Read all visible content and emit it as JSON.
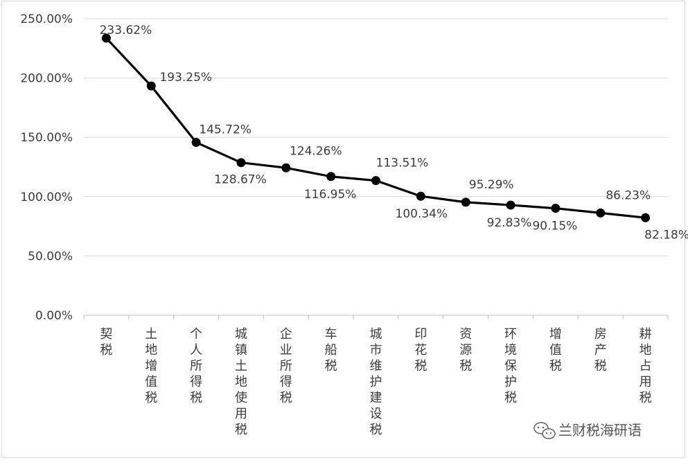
{
  "chart_data": {
    "type": "line",
    "title": "",
    "xlabel": "",
    "ylabel": "",
    "categories": [
      "契税",
      "土地增值税",
      "个人所得税",
      "城镇土地使用税",
      "企业所得税",
      "车船税",
      "城市维护建设税",
      "印花税",
      "资源税",
      "环境保护税",
      "增值税",
      "房产税",
      "耕地占用税"
    ],
    "values": [
      233.62,
      193.25,
      145.72,
      128.67,
      124.26,
      116.95,
      113.51,
      100.34,
      95.29,
      92.83,
      90.15,
      86.23,
      82.18
    ],
    "data_labels": [
      "233.62%",
      "193.25%",
      "145.72%",
      "128.67%",
      "124.26%",
      "116.95%",
      "113.51%",
      "100.34%",
      "95.29%",
      "92.83%",
      "90.15%",
      "86.23%",
      "82.18%"
    ],
    "ylim": [
      0,
      250
    ],
    "yticks": [
      0,
      50,
      100,
      150,
      200,
      250
    ],
    "ytick_labels": [
      "0.00%",
      "50.00%",
      "100.00%",
      "150.00%",
      "200.00%",
      "250.00%"
    ],
    "grid": true,
    "line_color": "#000000",
    "marker": "circle"
  },
  "watermark": {
    "icon": "wechat-icon",
    "text": "兰财税海研语"
  }
}
